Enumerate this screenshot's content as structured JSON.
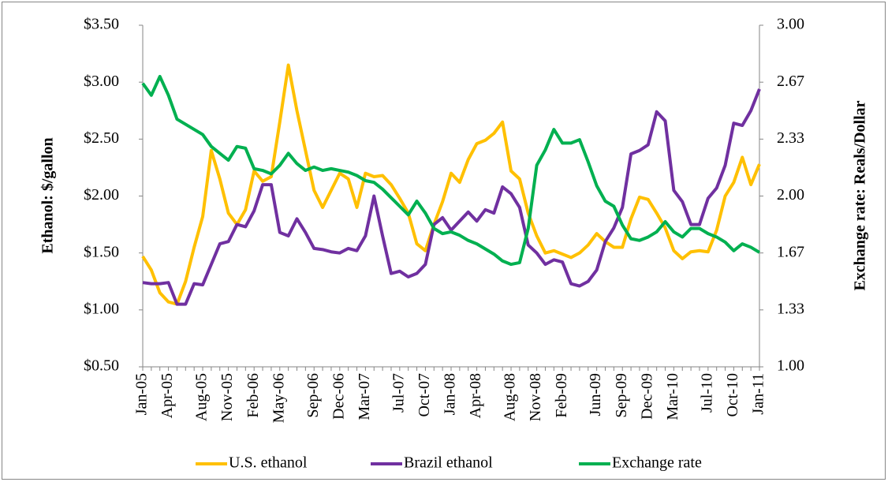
{
  "chart_data": {
    "type": "line",
    "y_label": "Ethanol:  $/gallon",
    "y2_label": "Exchange rate:  Reals/Dollar",
    "categories": [
      "Jan-05",
      null,
      null,
      "Apr-05",
      null,
      null,
      null,
      "Aug-05",
      null,
      null,
      "Nov-05",
      null,
      null,
      "Feb-06",
      null,
      null,
      "May-06",
      null,
      null,
      null,
      "Sep-06",
      null,
      null,
      "Dec-06",
      null,
      null,
      "Mar-07",
      null,
      null,
      null,
      "Jul-07",
      null,
      null,
      "Oct-07",
      null,
      null,
      "Jan-08",
      null,
      null,
      "Apr-08",
      null,
      null,
      null,
      "Aug-08",
      null,
      null,
      "Nov-08",
      null,
      null,
      "Feb-09",
      null,
      null,
      null,
      "Jun-09",
      null,
      null,
      "Sep-09",
      null,
      null,
      "Dec-09",
      null,
      null,
      "Mar-10",
      null,
      null,
      null,
      "Jul-10",
      null,
      null,
      "Oct-10",
      null,
      null,
      "Jan-11"
    ],
    "series": [
      {
        "name": "U.S. ethanol",
        "color": "#FFC000",
        "values": [
          1.47,
          1.35,
          1.15,
          1.07,
          1.05,
          1.25,
          1.55,
          1.82,
          2.4,
          2.15,
          1.85,
          1.75,
          1.88,
          2.22,
          2.13,
          2.17,
          2.65,
          3.15,
          2.75,
          2.4,
          2.05,
          1.9,
          2.05,
          2.2,
          2.15,
          1.9,
          2.2,
          2.17,
          2.18,
          2.1,
          1.98,
          1.85,
          1.58,
          1.52,
          1.75,
          1.95,
          2.2,
          2.12,
          2.32,
          2.46,
          2.49,
          2.55,
          2.65,
          2.22,
          2.15,
          1.85,
          1.65,
          1.5,
          1.52,
          1.49,
          1.46,
          1.5,
          1.57,
          1.67,
          1.6,
          1.55,
          1.55,
          1.8,
          1.99,
          1.97,
          1.85,
          1.72,
          1.52,
          1.45,
          1.51,
          1.52,
          1.51,
          1.7,
          2.0,
          2.12,
          2.34,
          2.1,
          2.28
        ]
      },
      {
        "name": "Brazil ethanol",
        "color": "#7030A0",
        "values": [
          1.24,
          1.23,
          1.23,
          1.24,
          1.05,
          1.05,
          1.23,
          1.22,
          1.4,
          1.58,
          1.6,
          1.75,
          1.73,
          1.87,
          2.1,
          2.1,
          1.68,
          1.65,
          1.8,
          1.68,
          1.54,
          1.53,
          1.51,
          1.5,
          1.54,
          1.52,
          1.65,
          2.0,
          1.65,
          1.32,
          1.34,
          1.29,
          1.32,
          1.4,
          1.75,
          1.81,
          1.7,
          1.78,
          1.86,
          1.78,
          1.88,
          1.85,
          2.08,
          2.02,
          1.9,
          1.57,
          1.5,
          1.4,
          1.44,
          1.42,
          1.23,
          1.21,
          1.25,
          1.35,
          1.6,
          1.72,
          1.9,
          2.37,
          2.4,
          2.45,
          2.74,
          2.66,
          2.05,
          1.95,
          1.75,
          1.75,
          1.98,
          2.07,
          2.27,
          2.64,
          2.62,
          2.75,
          2.94
        ]
      },
      {
        "name": "Exchange rate",
        "color": "#00B050",
        "axis": "y2",
        "values": [
          2.66,
          2.59,
          2.7,
          2.59,
          2.45,
          2.42,
          2.39,
          2.36,
          2.29,
          2.25,
          2.21,
          2.29,
          2.28,
          2.16,
          2.15,
          2.13,
          2.18,
          2.25,
          2.19,
          2.15,
          2.17,
          2.15,
          2.16,
          2.15,
          2.14,
          2.12,
          2.09,
          2.08,
          2.04,
          1.99,
          1.94,
          1.89,
          1.97,
          1.9,
          1.81,
          1.78,
          1.79,
          1.77,
          1.74,
          1.72,
          1.69,
          1.66,
          1.62,
          1.6,
          1.61,
          1.81,
          2.18,
          2.27,
          2.39,
          2.31,
          2.31,
          2.33,
          2.2,
          2.06,
          1.97,
          1.94,
          1.83,
          1.75,
          1.74,
          1.76,
          1.79,
          1.85,
          1.79,
          1.76,
          1.81,
          1.81,
          1.78,
          1.76,
          1.73,
          1.68,
          1.72,
          1.7,
          1.67
        ]
      }
    ],
    "ylim": [
      0.5,
      3.5
    ],
    "yticks": [
      {
        "value": 0.5,
        "label": "$0.50"
      },
      {
        "value": 1,
        "label": "$1.00"
      },
      {
        "value": 1.5,
        "label": "$1.50"
      },
      {
        "value": 2,
        "label": "$2.00"
      },
      {
        "value": 2.5,
        "label": "$2.50"
      },
      {
        "value": 3,
        "label": "$3.00"
      },
      {
        "value": 3.5,
        "label": "$3.50"
      }
    ],
    "y2lim": [
      1,
      3
    ],
    "y2ticks": [
      {
        "value": 1,
        "label": "1.00"
      },
      {
        "value": 1.3333,
        "label": "1.33"
      },
      {
        "value": 1.6667,
        "label": "1.67"
      },
      {
        "value": 2,
        "label": "2.00"
      },
      {
        "value": 2.3333,
        "label": "2.33"
      },
      {
        "value": 2.6667,
        "label": "2.67"
      },
      {
        "value": 3,
        "label": "3.00"
      }
    ],
    "grid": false,
    "legend": "bottom"
  }
}
